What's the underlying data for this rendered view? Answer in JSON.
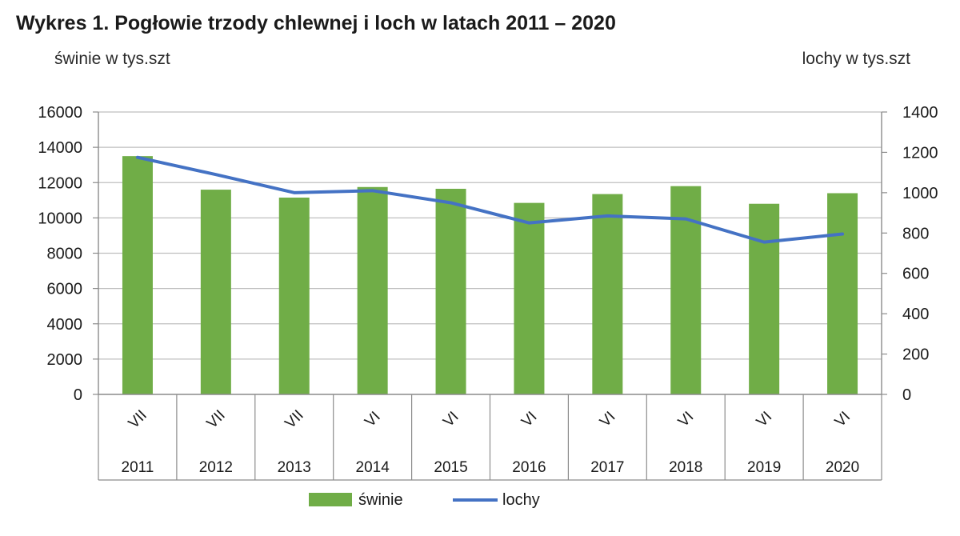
{
  "chart_data": {
    "type": "bar",
    "title": "Wykres 1. Pogłowie trzody chlewnej i loch w latach 2011 – 2020",
    "ylabel_left": "świnie w tys.szt",
    "ylabel_right": "lochy w tys.szt",
    "ylim_left": [
      0,
      16000
    ],
    "ylim_right": [
      0,
      1400
    ],
    "yticks_left": [
      "16000",
      "14000",
      "12000",
      "10000",
      "8000",
      "6000",
      "4000",
      "2000",
      "0"
    ],
    "yticks_right": [
      "1400",
      "1200",
      "1000",
      "800",
      "600",
      "400",
      "200",
      "0"
    ],
    "grid": true,
    "legend_position": "bottom",
    "categories": [
      {
        "month": "VII",
        "year": "2011"
      },
      {
        "month": "VII",
        "year": "2012"
      },
      {
        "month": "VII",
        "year": "2013"
      },
      {
        "month": "VI",
        "year": "2014"
      },
      {
        "month": "VI",
        "year": "2015"
      },
      {
        "month": "VI",
        "year": "2016"
      },
      {
        "month": "VI",
        "year": "2017"
      },
      {
        "month": "VI",
        "year": "2018"
      },
      {
        "month": "VI",
        "year": "2019"
      },
      {
        "month": "VI",
        "year": "2020"
      }
    ],
    "series": [
      {
        "name": "świnie",
        "type": "bar",
        "axis": "left",
        "color": "#70ad47",
        "values": [
          13500,
          11600,
          11150,
          11750,
          11650,
          10850,
          11350,
          11800,
          10800,
          11400
        ]
      },
      {
        "name": "lochy",
        "type": "line",
        "axis": "right",
        "color": "#4472c4",
        "values": [
          1175,
          1090,
          1000,
          1010,
          950,
          850,
          885,
          870,
          755,
          795
        ]
      }
    ]
  }
}
